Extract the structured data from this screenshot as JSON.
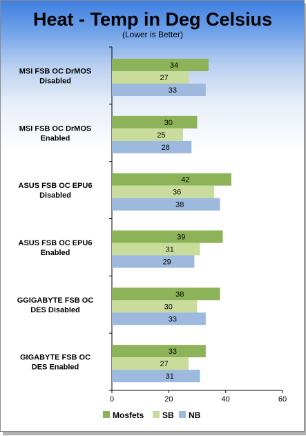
{
  "chart_data": {
    "type": "bar",
    "orientation": "horizontal",
    "title": "Heat - Temp in Deg Celsius",
    "subtitle": "(Lower is Better)",
    "categories": [
      [
        "MSI FSB OC DrMOS",
        "Disabled"
      ],
      [
        "MSI FSB OC DrMOS",
        "Enabled"
      ],
      [
        "ASUS FSB OC EPU6",
        "Disabled"
      ],
      [
        "ASUS FSB OC EPU6",
        "Enabled"
      ],
      [
        "GGIGABYTE FSB OC",
        "DES Disabled"
      ],
      [
        "GIGABYTE FSB OC",
        "DES Enabled"
      ]
    ],
    "series": [
      {
        "name": "Mosfets",
        "color": "#8db359",
        "values": [
          34,
          30,
          42,
          39,
          38,
          33
        ]
      },
      {
        "name": "SB",
        "color": "#c9dc9c",
        "values": [
          27,
          25,
          36,
          31,
          30,
          27
        ]
      },
      {
        "name": "NB",
        "color": "#9db9dd",
        "values": [
          33,
          28,
          38,
          29,
          33,
          31
        ]
      }
    ],
    "xlim": [
      0,
      60
    ],
    "xticks": [
      0,
      20,
      40,
      60
    ],
    "grid": false,
    "legend": "bottom"
  }
}
